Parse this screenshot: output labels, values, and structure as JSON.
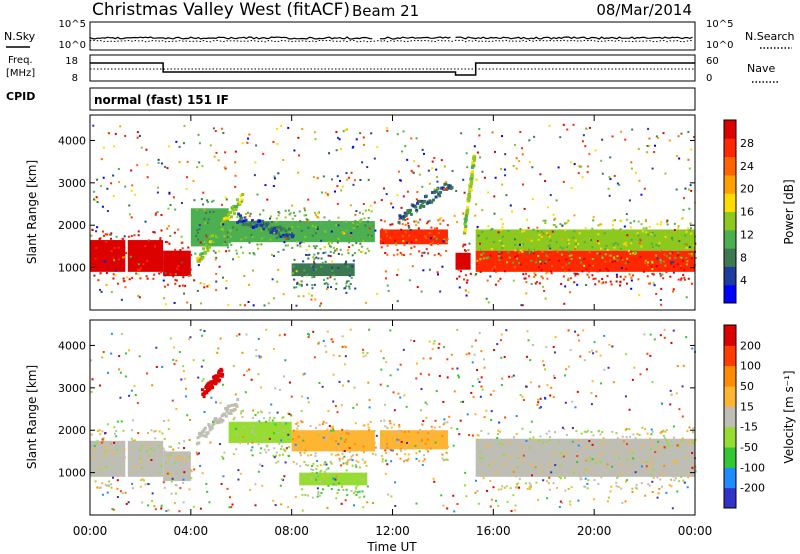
{
  "header": {
    "title": "Christmas Valley West (fitACF)",
    "beam": "Beam 21",
    "date": "08/Mar/2014"
  },
  "sky_panel": {
    "left_label": "N.Sky",
    "right_label": "N.Search",
    "left_ticks": [
      "10^5",
      "10^0"
    ],
    "right_ticks": [
      "10^5",
      "10^0"
    ]
  },
  "freq_panel": {
    "left_label_1": "Freq.",
    "left_label_2": "[MHz]",
    "right_label": "Nave",
    "left_ticks": [
      "18",
      "8"
    ],
    "right_ticks": [
      "60",
      "0"
    ]
  },
  "cpid_panel": {
    "label": "CPID",
    "mode": "normal (fast) 151 IF"
  },
  "x_axis": {
    "label": "Time UT",
    "ticks": [
      "00:00",
      "04:00",
      "08:00",
      "12:00",
      "16:00",
      "20:00",
      "00:00"
    ],
    "range_hours": [
      0,
      24
    ]
  },
  "colors": {
    "power": [
      "#0000ff",
      "#1e3ca0",
      "#3c7850",
      "#4caf50",
      "#8cc81e",
      "#ffdc00",
      "#ffa000",
      "#ff6400",
      "#ff2800",
      "#dc0000"
    ],
    "velocity": [
      "#3232c8",
      "#1e8cff",
      "#32c832",
      "#96dc32",
      "#bebeb4",
      "#ffb432",
      "#ff8c00",
      "#ff3c00",
      "#dc0000"
    ]
  },
  "chart_data": [
    {
      "type": "heatmap",
      "name_on_chart": "power-panel",
      "ylabel": "Slant Range [km]",
      "ylim": [
        0,
        4600
      ],
      "yticks": [
        "1000",
        "2000",
        "3000",
        "4000"
      ],
      "colorbar": {
        "label": "Power [dB]",
        "ticks": [
          "28",
          "24",
          "20",
          "16",
          "12",
          "8",
          "4"
        ],
        "range": [
          0,
          32
        ]
      },
      "regions": [
        {
          "start": 0.0,
          "end": 1.4,
          "range_low": 900,
          "range_high": 1650,
          "value": 30
        },
        {
          "start": 1.5,
          "end": 2.9,
          "range_low": 900,
          "range_high": 1650,
          "value": 30
        },
        {
          "start": 2.9,
          "end": 4.0,
          "range_low": 800,
          "range_high": 1400,
          "value": 30
        },
        {
          "start": 4.0,
          "end": 5.5,
          "range_low": 1500,
          "range_high": 2400,
          "value": 10
        },
        {
          "start": 5.5,
          "end": 11.3,
          "range_low": 1600,
          "range_high": 2100,
          "value": 12
        },
        {
          "start": 8.0,
          "end": 10.5,
          "range_low": 800,
          "range_high": 1100,
          "value": 8
        },
        {
          "start": 11.5,
          "end": 14.2,
          "range_low": 1550,
          "range_high": 1900,
          "value": 26
        },
        {
          "start": 14.5,
          "end": 15.1,
          "range_low": 950,
          "range_high": 1350,
          "value": 30
        },
        {
          "start": 15.3,
          "end": 24.0,
          "range_low": 900,
          "range_high": 1400,
          "value": 28
        },
        {
          "start": 15.3,
          "end": 24.0,
          "range_low": 1400,
          "range_high": 1900,
          "value": 14
        }
      ],
      "streaks": [
        {
          "start_time": 4.2,
          "start_range": 1200,
          "end_time": 6.0,
          "end_range": 2700,
          "value": 14
        },
        {
          "start_time": 5.8,
          "start_range": 2200,
          "end_time": 8.0,
          "end_range": 1800,
          "value": 6
        },
        {
          "start_time": 14.8,
          "start_range": 1900,
          "end_time": 15.2,
          "end_range": 3700,
          "value": 14
        },
        {
          "start_time": 12.2,
          "start_range": 2200,
          "end_time": 14.3,
          "end_range": 3000,
          "value": 6
        }
      ]
    },
    {
      "type": "heatmap",
      "name_on_chart": "velocity-panel",
      "ylabel": "Slant Range [km]",
      "ylim": [
        0,
        4600
      ],
      "yticks": [
        "1000",
        "2000",
        "3000",
        "4000"
      ],
      "colorbar": {
        "label": "Velocity [m s⁻¹]",
        "ticks": [
          "200",
          "100",
          "50",
          "15",
          "-15",
          "-50",
          "-100",
          "-200"
        ],
        "range": [
          -250,
          250
        ]
      },
      "regions": [
        {
          "start": 0.0,
          "end": 1.4,
          "range_low": 900,
          "range_high": 1750,
          "value": 0
        },
        {
          "start": 1.5,
          "end": 2.9,
          "range_low": 900,
          "range_high": 1750,
          "value": 0
        },
        {
          "start": 2.9,
          "end": 4.0,
          "range_low": 800,
          "range_high": 1500,
          "value": 0
        },
        {
          "start": 5.5,
          "end": 8.0,
          "range_low": 1700,
          "range_high": 2200,
          "value": -40
        },
        {
          "start": 8.0,
          "end": 11.3,
          "range_low": 1500,
          "range_high": 2000,
          "value": 60
        },
        {
          "start": 8.3,
          "end": 11.0,
          "range_low": 700,
          "range_high": 1000,
          "value": -60
        },
        {
          "start": 11.5,
          "end": 14.2,
          "range_low": 1550,
          "range_high": 2000,
          "value": 60
        },
        {
          "start": 15.3,
          "end": 24.0,
          "range_low": 900,
          "range_high": 1800,
          "value": 0
        }
      ],
      "streaks": [
        {
          "start_time": 4.4,
          "start_range": 2900,
          "end_time": 5.2,
          "end_range": 3400,
          "value": 200
        },
        {
          "start_time": 4.2,
          "start_range": 1800,
          "end_time": 5.8,
          "end_range": 2700,
          "value": 0
        }
      ]
    }
  ]
}
